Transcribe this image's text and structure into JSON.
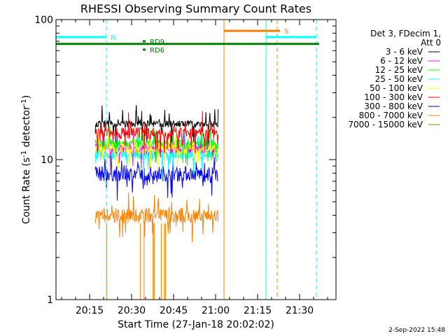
{
  "chart_data": {
    "type": "line",
    "title": "RHESSI Observing Summary Count Rates",
    "xlabel": "Start Time (27-Jan-18 20:02:02)",
    "ylabel_main": "Count Rate (s",
    "ylabel_sup1": "-1",
    "ylabel_mid": " detector",
    "ylabel_sup2": "-1",
    "ylabel_end": ")",
    "y_scale": "log",
    "ylim": [
      1,
      100
    ],
    "xlim_minutes": [
      3,
      103
    ],
    "x_ticks": [
      {
        "minute": 15,
        "label": "20:15"
      },
      {
        "minute": 30,
        "label": "20:30"
      },
      {
        "minute": 45,
        "label": "20:45"
      },
      {
        "minute": 60,
        "label": "21:00"
      },
      {
        "minute": 75,
        "label": "21:15"
      },
      {
        "minute": 90,
        "label": "21:30"
      }
    ],
    "y_ticks": [
      {
        "value": 1,
        "label": "1"
      },
      {
        "value": 10,
        "label": "10"
      },
      {
        "value": 100,
        "label": "100"
      }
    ],
    "legend_header": [
      "Det 3, FDecim 1,",
      "Att 0"
    ],
    "data_interval_minutes": [
      17,
      61
    ],
    "series": [
      {
        "name": "3 - 6 keV",
        "color": "#000000",
        "values": [
          17,
          19
        ]
      },
      {
        "name": "6 - 12 keV",
        "color": "#ff00ff",
        "values": [
          11,
          13
        ]
      },
      {
        "name": "12 - 25 keV",
        "color": "#00ff00",
        "values": [
          12,
          14
        ]
      },
      {
        "name": "25 - 50 keV",
        "color": "#00ffff",
        "values": [
          10,
          12
        ]
      },
      {
        "name": "50 - 100 keV",
        "color": "#ffff00",
        "values": [
          11,
          13
        ]
      },
      {
        "name": "100 - 300 keV",
        "color": "#ff0000",
        "values": [
          14,
          17
        ]
      },
      {
        "name": "300 - 800 keV",
        "color": "#0000ff",
        "values": [
          7,
          9
        ]
      },
      {
        "name": "800 - 7000 keV",
        "color": "#ff8000",
        "values": [
          3.5,
          4.5
        ]
      },
      {
        "name": "7000 - 15000 keV",
        "color": "#808000",
        "values": []
      }
    ],
    "markers": [
      {
        "label": "N",
        "color": "#00ffff",
        "x_start": 3,
        "x_end": 21,
        "y": 75
      },
      {
        "label": "",
        "color": "#00ffff",
        "x_start": 78,
        "x_end": 96,
        "y": 75
      },
      {
        "label": "S",
        "color": "#ff8000",
        "x_start": 63,
        "x_end": 83,
        "y": 83
      },
      {
        "label": "",
        "color": "#008000",
        "x_start": 3,
        "x_end": 97,
        "y": 67
      },
      {
        "label": "RD9",
        "color": "#008000",
        "x_start": 34,
        "x_end": 35,
        "y": 70
      },
      {
        "label": "RD6",
        "color": "#008000",
        "x_start": 34,
        "x_end": 35,
        "y": 61
      }
    ],
    "vlines": [
      {
        "minute": 3,
        "color": "#00ffff",
        "style": "solid"
      },
      {
        "minute": 21,
        "color": "#00ffff",
        "style": "dashed"
      },
      {
        "minute": 63,
        "color": "#ff8000",
        "style": "solid"
      },
      {
        "minute": 78,
        "color": "#00ffff",
        "style": "solid"
      },
      {
        "minute": 82,
        "color": "#ff8000",
        "style": "dashed"
      },
      {
        "minute": 96,
        "color": "#00ffff",
        "style": "dashed"
      }
    ]
  },
  "footer": {
    "timestamp": "2-Sep-2022 15:48"
  }
}
